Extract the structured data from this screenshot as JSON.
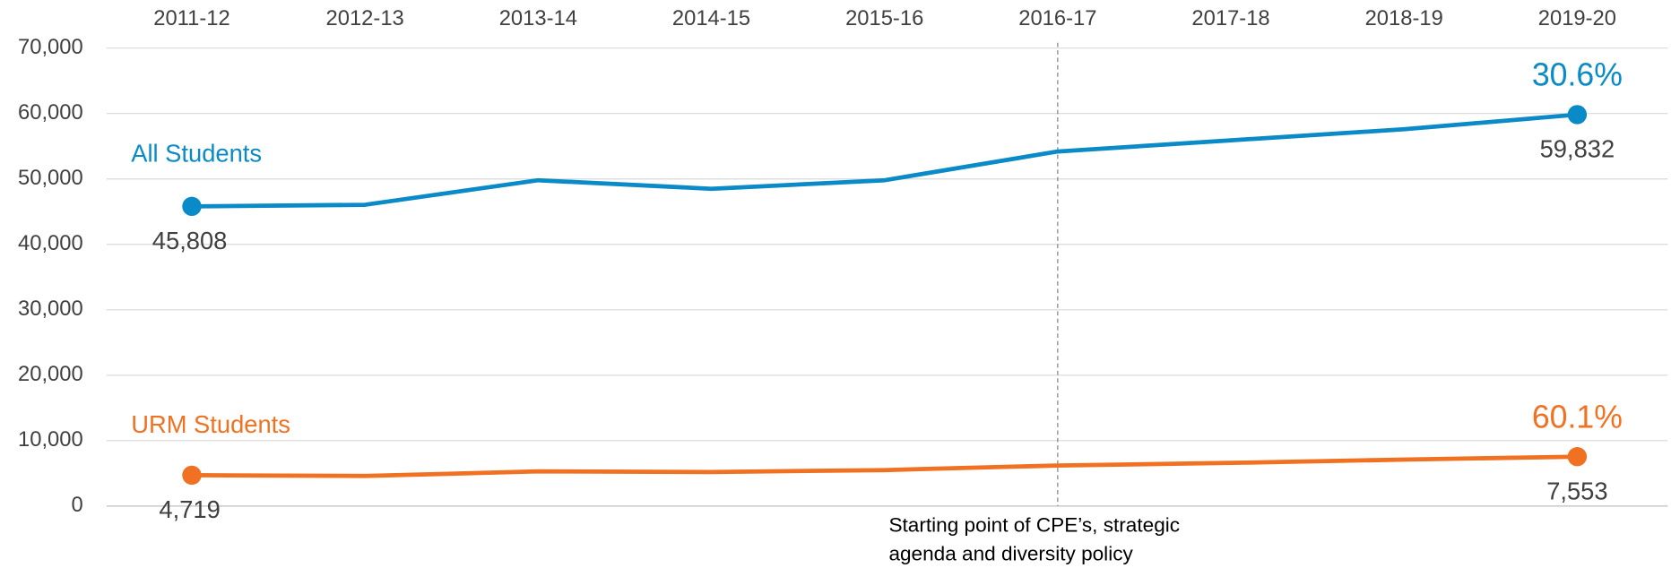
{
  "chart_data": {
    "type": "line",
    "categories": [
      "2011-12",
      "2012-13",
      "2013-14",
      "2014-15",
      "2015-16",
      "2016-17",
      "2017-18",
      "2018-19",
      "2019-20"
    ],
    "series": [
      {
        "name": "All Students",
        "color": "#0a8ac6",
        "values": [
          45808,
          46050,
          49800,
          48500,
          49800,
          54200,
          55900,
          57600,
          59832
        ],
        "value_labels": [
          "45,808",
          null,
          null,
          null,
          null,
          null,
          null,
          null,
          "59,832"
        ],
        "change": "30.6%"
      },
      {
        "name": "URM Students",
        "color": "#f07122",
        "values": [
          4719,
          4600,
          5300,
          5200,
          5500,
          6200,
          6600,
          7100,
          7553
        ],
        "value_labels": [
          "4,719",
          null,
          null,
          null,
          null,
          null,
          null,
          null,
          "7,553"
        ],
        "change": "60.1%"
      }
    ],
    "ylim": [
      0,
      70000
    ],
    "yticks": [
      0,
      {
        "value": 10000,
        "label": "10,000"
      },
      {
        "value": 20000,
        "label": "20,000"
      },
      {
        "value": 30000,
        "label": "30,000"
      },
      {
        "value": 40000,
        "label": "40,000"
      },
      {
        "value": 50000,
        "label": "50,000"
      },
      {
        "value": 60000,
        "label": "60,000"
      },
      {
        "value": 70000,
        "label": "70,000"
      }
    ],
    "grid": true,
    "annotation": {
      "at": "2016-17",
      "text": [
        "Starting point of CPE’s, strategic",
        "agenda and diversity policy"
      ]
    }
  }
}
